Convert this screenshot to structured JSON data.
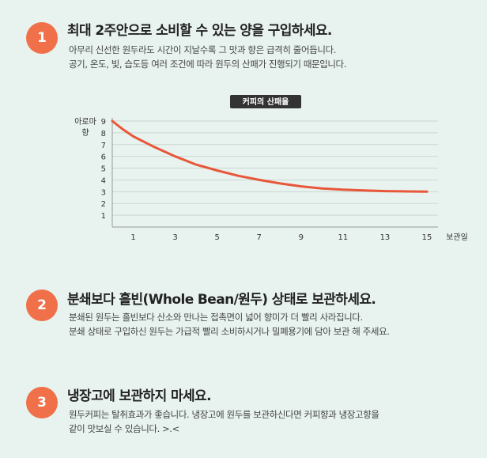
{
  "steps": [
    {
      "number": "1",
      "title": "최대 2주안으로 소비할 수 있는 양을 구입하세요.",
      "lines": [
        "아무리 신선한 원두라도 시간이 지날수록  그 맛과 향은 급격히 줄어듭니다.",
        "공기, 온도, 빛, 습도등 여러 조건에 따라 원두의 산패가 진행되기 때문입니다."
      ]
    },
    {
      "number": "2",
      "title": "분쇄보다 홀빈(Whole Bean/원두) 상태로 보관하세요.",
      "lines": [
        "분쇄된 원두는 홀빈보다 산소와 만나는 접촉면이 넓어 향미가 더 빨리 사라집니다.",
        "분쇄 상태로 구입하신 원두는 가급적 빨리 소비하시거나 밀폐용기에 담아 보관 해 주세요."
      ]
    },
    {
      "number": "3",
      "title": "냉장고에 보관하지 마세요.",
      "lines": [
        "원두커피는 탈취효과가 좋습니다. 냉장고에 원두를 보관하신다면 커피향과 냉장고향을",
        "같이 맛보실 수 있습니다. >.<"
      ]
    }
  ],
  "chart_data": {
    "type": "line",
    "title": "커피의 산패율",
    "ylabel": "아로마 향",
    "ylabel_lines": [
      "아로마",
      "향"
    ],
    "xlabel": "보관일",
    "ylim": [
      0,
      9
    ],
    "xlim": [
      0,
      15
    ],
    "yticks": [
      1,
      2,
      3,
      4,
      5,
      6,
      7,
      8,
      9
    ],
    "xticks": [
      1,
      3,
      5,
      7,
      9,
      11,
      13,
      15
    ],
    "grid": true,
    "line_color": "#e8573a",
    "series": [
      {
        "x": [
          0,
          0.5,
          1,
          2,
          3,
          4,
          5,
          6,
          7,
          8,
          9,
          10,
          11,
          12,
          13,
          14,
          15
        ],
        "values": [
          9.0,
          8.3,
          7.7,
          6.8,
          6.0,
          5.3,
          4.8,
          4.35,
          4.0,
          3.7,
          3.45,
          3.28,
          3.17,
          3.1,
          3.05,
          3.02,
          3.0
        ]
      }
    ]
  },
  "colors": {
    "background": "#e8f3ef",
    "badge": "#f0704a",
    "title_box": "#333333"
  }
}
